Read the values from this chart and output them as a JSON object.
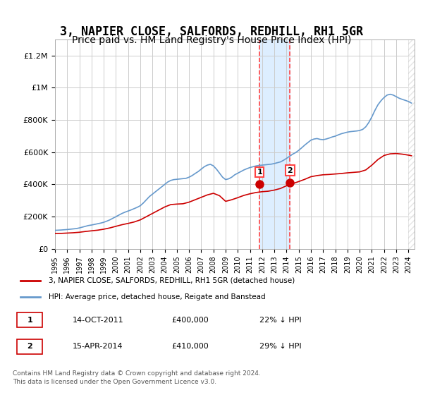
{
  "title": "3, NAPIER CLOSE, SALFORDS, REDHILL, RH1 5GR",
  "subtitle": "Price paid vs. HM Land Registry's House Price Index (HPI)",
  "title_fontsize": 12,
  "subtitle_fontsize": 10,
  "hpi_color": "#6699cc",
  "price_color": "#cc0000",
  "background_color": "#ffffff",
  "plot_bg_color": "#ffffff",
  "grid_color": "#cccccc",
  "highlight_bg": "#ddeeff",
  "highlight_border": "#ff4444",
  "ylim": [
    0,
    1300000
  ],
  "yticks": [
    0,
    200000,
    400000,
    600000,
    800000,
    1000000,
    1200000
  ],
  "ytick_labels": [
    "£0",
    "£200K",
    "£400K",
    "£600K",
    "£800K",
    "£1M",
    "£1.2M"
  ],
  "legend_entry1": "3, NAPIER CLOSE, SALFORDS, REDHILL, RH1 5GR (detached house)",
  "legend_entry2": "HPI: Average price, detached house, Reigate and Banstead",
  "transaction1_label": "1",
  "transaction1_date": "14-OCT-2011",
  "transaction1_price": "£400,000",
  "transaction1_pct": "22% ↓ HPI",
  "transaction2_label": "2",
  "transaction2_date": "15-APR-2014",
  "transaction2_price": "£410,000",
  "transaction2_pct": "29% ↓ HPI",
  "footnote": "Contains HM Land Registry data © Crown copyright and database right 2024.\nThis data is licensed under the Open Government Licence v3.0.",
  "sale1_date": 2011.79,
  "sale1_price": 400000,
  "sale2_date": 2014.29,
  "sale2_price": 410000,
  "hpi_dates": [
    1995.0,
    1995.25,
    1995.5,
    1995.75,
    1996.0,
    1996.25,
    1996.5,
    1996.75,
    1997.0,
    1997.25,
    1997.5,
    1997.75,
    1998.0,
    1998.25,
    1998.5,
    1998.75,
    1999.0,
    1999.25,
    1999.5,
    1999.75,
    2000.0,
    2000.25,
    2000.5,
    2000.75,
    2001.0,
    2001.25,
    2001.5,
    2001.75,
    2002.0,
    2002.25,
    2002.5,
    2002.75,
    2003.0,
    2003.25,
    2003.5,
    2003.75,
    2004.0,
    2004.25,
    2004.5,
    2004.75,
    2005.0,
    2005.25,
    2005.5,
    2005.75,
    2006.0,
    2006.25,
    2006.5,
    2006.75,
    2007.0,
    2007.25,
    2007.5,
    2007.75,
    2008.0,
    2008.25,
    2008.5,
    2008.75,
    2009.0,
    2009.25,
    2009.5,
    2009.75,
    2010.0,
    2010.25,
    2010.5,
    2010.75,
    2011.0,
    2011.25,
    2011.5,
    2011.75,
    2012.0,
    2012.25,
    2012.5,
    2012.75,
    2013.0,
    2013.25,
    2013.5,
    2013.75,
    2014.0,
    2014.25,
    2014.5,
    2014.75,
    2015.0,
    2015.25,
    2015.5,
    2015.75,
    2016.0,
    2016.25,
    2016.5,
    2016.75,
    2017.0,
    2017.25,
    2017.5,
    2017.75,
    2018.0,
    2018.25,
    2018.5,
    2018.75,
    2019.0,
    2019.25,
    2019.5,
    2019.75,
    2020.0,
    2020.25,
    2020.5,
    2020.75,
    2021.0,
    2021.25,
    2021.5,
    2021.75,
    2022.0,
    2022.25,
    2022.5,
    2022.75,
    2023.0,
    2023.25,
    2023.5,
    2023.75,
    2024.0,
    2024.25
  ],
  "hpi_values": [
    115000,
    116000,
    117000,
    118500,
    120000,
    122000,
    124000,
    126000,
    130000,
    135000,
    140000,
    145000,
    148000,
    152000,
    156000,
    160000,
    165000,
    172000,
    180000,
    190000,
    200000,
    210000,
    220000,
    228000,
    235000,
    242000,
    250000,
    258000,
    268000,
    285000,
    305000,
    325000,
    340000,
    355000,
    370000,
    385000,
    400000,
    415000,
    425000,
    430000,
    432000,
    434000,
    436000,
    438000,
    445000,
    455000,
    468000,
    480000,
    495000,
    510000,
    520000,
    525000,
    515000,
    495000,
    470000,
    445000,
    430000,
    435000,
    445000,
    460000,
    470000,
    480000,
    490000,
    498000,
    505000,
    510000,
    515000,
    518000,
    520000,
    522000,
    524000,
    526000,
    530000,
    535000,
    540000,
    550000,
    562000,
    575000,
    588000,
    598000,
    612000,
    628000,
    645000,
    660000,
    675000,
    682000,
    685000,
    680000,
    678000,
    682000,
    688000,
    695000,
    700000,
    708000,
    715000,
    720000,
    725000,
    728000,
    730000,
    732000,
    735000,
    742000,
    758000,
    785000,
    820000,
    860000,
    895000,
    920000,
    940000,
    955000,
    960000,
    955000,
    945000,
    935000,
    928000,
    922000,
    915000,
    905000
  ],
  "price_dates": [
    1995.0,
    1995.5,
    1996.0,
    1996.5,
    1997.0,
    1997.5,
    1998.0,
    1998.5,
    1999.0,
    1999.5,
    2000.0,
    2000.5,
    2001.0,
    2001.5,
    2002.0,
    2002.5,
    2003.0,
    2003.5,
    2004.0,
    2004.5,
    2005.0,
    2005.5,
    2006.0,
    2006.5,
    2007.0,
    2007.5,
    2008.0,
    2008.5,
    2009.0,
    2009.5,
    2010.0,
    2010.5,
    2011.0,
    2011.5,
    2012.0,
    2012.5,
    2013.0,
    2013.5,
    2014.0,
    2014.5,
    2015.0,
    2015.5,
    2016.0,
    2016.5,
    2017.0,
    2017.5,
    2018.0,
    2018.5,
    2019.0,
    2019.5,
    2020.0,
    2020.5,
    2021.0,
    2021.5,
    2022.0,
    2022.5,
    2023.0,
    2023.5,
    2024.0,
    2024.25
  ],
  "price_values": [
    95000,
    96000,
    98000,
    100000,
    103000,
    108000,
    112000,
    116000,
    122000,
    130000,
    140000,
    150000,
    158000,
    167000,
    180000,
    200000,
    220000,
    240000,
    260000,
    275000,
    278000,
    280000,
    290000,
    305000,
    320000,
    335000,
    345000,
    330000,
    295000,
    305000,
    318000,
    332000,
    342000,
    350000,
    355000,
    358000,
    365000,
    375000,
    392000,
    405000,
    418000,
    432000,
    448000,
    455000,
    460000,
    462000,
    465000,
    468000,
    472000,
    475000,
    478000,
    490000,
    520000,
    555000,
    580000,
    590000,
    592000,
    588000,
    582000,
    578000
  ]
}
